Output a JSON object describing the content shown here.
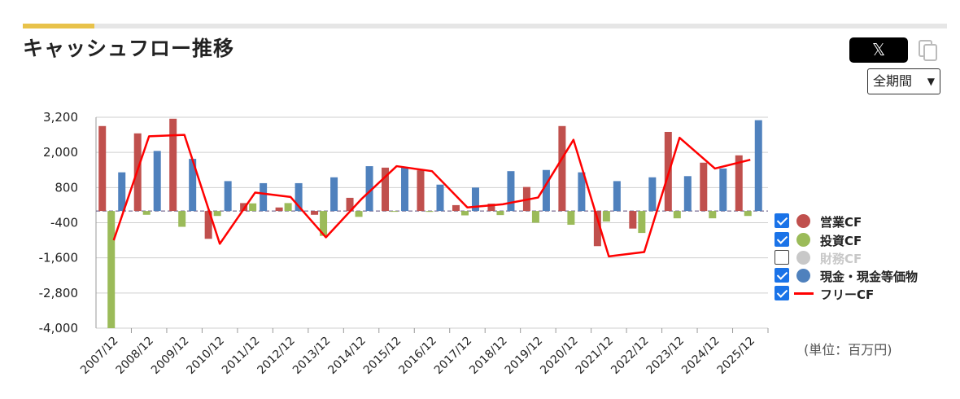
{
  "header": {
    "title": "キャッシュフロー推移",
    "x_button_label": "𝕏",
    "period_select": "全期間"
  },
  "unit_note": "(単位：百万円)",
  "colors": {
    "operating": "#c0504d",
    "investing": "#9bbb59",
    "financing": "#c8c8c8",
    "cash": "#4f81bd",
    "free": "#ff0000"
  },
  "legend": [
    {
      "label": "営業CF",
      "checked": true,
      "color": "#c0504d",
      "kind": "dot"
    },
    {
      "label": "投資CF",
      "checked": true,
      "color": "#9bbb59",
      "kind": "dot"
    },
    {
      "label": "財務CF",
      "checked": false,
      "color": "#c8c8c8",
      "kind": "dot"
    },
    {
      "label": "現金・現金等価物",
      "checked": true,
      "color": "#4f81bd",
      "kind": "dot"
    },
    {
      "label": "フリーCF",
      "checked": true,
      "color": "#ff0000",
      "kind": "line"
    }
  ],
  "chart_data": {
    "type": "bar",
    "categories": [
      "2007/12",
      "2008/12",
      "2009/12",
      "2010/12",
      "2011/12",
      "2012/12",
      "2013/12",
      "2014/12",
      "2015/12",
      "2016/12",
      "2017/12",
      "2018/12",
      "2019/12",
      "2020/12",
      "2021/12",
      "2022/12",
      "2023/12",
      "2024/12",
      "2025/12"
    ],
    "yticks": [
      3200,
      2000,
      800,
      -400,
      -1600,
      -2800,
      -4000
    ],
    "ytick_labels": [
      "3,200",
      "2,000",
      "800",
      "-400",
      "-1,600",
      "-2,800",
      "-4,000"
    ],
    "ylim": [
      -4000,
      3200
    ],
    "grid": true,
    "legend_position": "right",
    "series": [
      {
        "name": "営業CF",
        "type": "bar",
        "color": "#c0504d",
        "values": [
          2900,
          2650,
          3150,
          -950,
          270,
          120,
          -130,
          450,
          1480,
          1390,
          200,
          250,
          820,
          2900,
          -1200,
          -600,
          2700,
          1650,
          1900
        ]
      },
      {
        "name": "投資CF",
        "type": "bar",
        "color": "#9bbb59",
        "values": [
          -4000,
          -130,
          -540,
          -170,
          260,
          270,
          -850,
          -200,
          -20,
          -30,
          -150,
          -140,
          -400,
          -470,
          -360,
          -750,
          -250,
          -250,
          -170
        ]
      },
      {
        "name": "現金・現金等価物",
        "type": "bar",
        "color": "#4f81bd",
        "values": [
          1320,
          2050,
          1780,
          1020,
          950,
          950,
          1150,
          1530,
          1480,
          900,
          800,
          1360,
          1400,
          1320,
          1020,
          1150,
          1190,
          1450,
          3100
        ]
      },
      {
        "name": "フリーCF",
        "type": "line",
        "color": "#ff0000",
        "values": [
          -1000,
          2550,
          2600,
          -1120,
          630,
          480,
          -900,
          400,
          1530,
          1360,
          120,
          230,
          460,
          2430,
          -1550,
          -1400,
          2500,
          1450,
          1750
        ]
      }
    ]
  }
}
